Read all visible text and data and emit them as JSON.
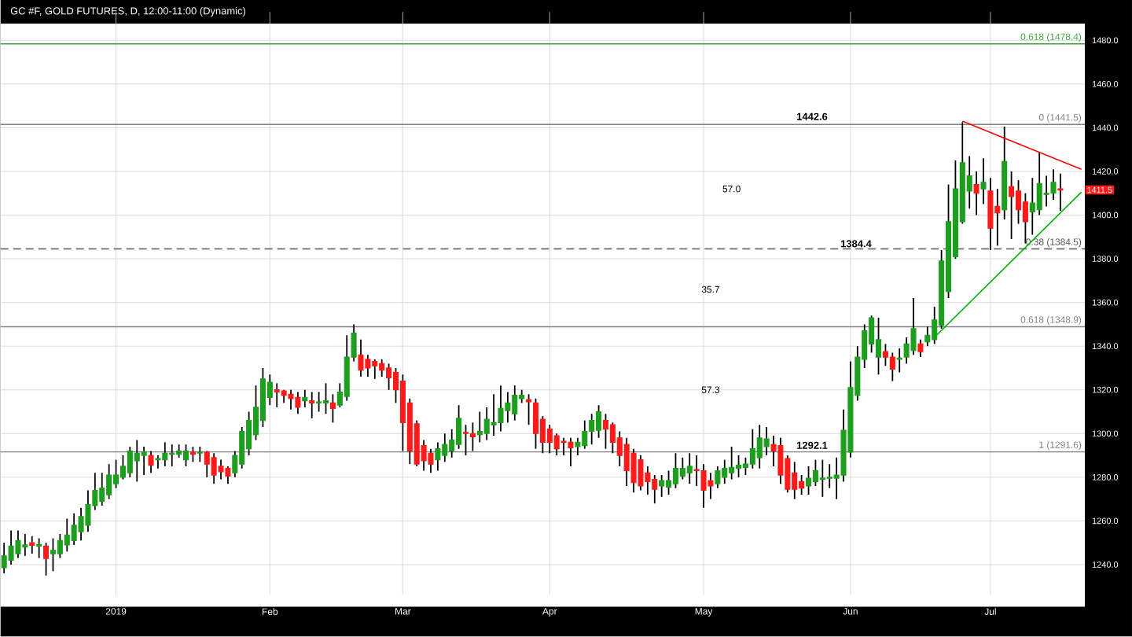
{
  "chart_data": {
    "type": "candlestick",
    "title": "GC #F, GOLD FUTURES, D, 12:00-11:00 (Dynamic)",
    "categories": [
      null,
      null,
      null,
      null,
      null,
      null,
      null,
      null,
      null,
      null,
      null,
      null,
      null,
      null,
      null,
      null,
      "2019",
      null,
      null,
      null,
      null,
      null,
      null,
      null,
      null,
      null,
      null,
      null,
      null,
      null,
      null,
      null,
      null,
      null,
      null,
      null,
      null,
      null,
      "Feb",
      null,
      null,
      null,
      null,
      null,
      null,
      null,
      null,
      null,
      null,
      null,
      null,
      null,
      null,
      null,
      null,
      null,
      null,
      "Mar",
      null,
      null,
      null,
      null,
      null,
      null,
      null,
      null,
      null,
      null,
      null,
      null,
      null,
      null,
      null,
      null,
      null,
      null,
      null,
      null,
      "Apr",
      null,
      null,
      null,
      null,
      null,
      null,
      null,
      null,
      null,
      null,
      null,
      null,
      null,
      null,
      null,
      null,
      null,
      null,
      null,
      null,
      null,
      "May",
      null,
      null,
      null,
      null,
      null,
      null,
      null,
      null,
      null,
      null,
      null,
      null,
      null,
      null,
      null,
      null,
      null,
      null,
      null,
      null,
      "Jun",
      null,
      null,
      null,
      null,
      null,
      null,
      null,
      null,
      null,
      null,
      null,
      null,
      null,
      null,
      null,
      null,
      null,
      null,
      null,
      "Jul",
      null,
      null,
      null,
      null,
      null,
      null,
      null,
      null,
      null,
      null,
      null,
      null,
      null
    ],
    "ohlc": [
      [
        1238.6,
        1250,
        1236,
        1244
      ],
      [
        1242,
        1255.6,
        1240,
        1248.5
      ],
      [
        1245,
        1255.6,
        1243,
        1251
      ],
      [
        1248,
        1254,
        1244,
        1249
      ],
      [
        1250,
        1253,
        1245,
        1248.8
      ],
      [
        1248.5,
        1252,
        1243,
        1249.2
      ],
      [
        1248.5,
        1250,
        1235,
        1242.8
      ],
      [
        1245,
        1252,
        1237,
        1246.5
      ],
      [
        1245,
        1254,
        1243,
        1251
      ],
      [
        1249,
        1261,
        1246,
        1253.5
      ],
      [
        1251,
        1263.5,
        1249,
        1258
      ],
      [
        1255,
        1266,
        1251,
        1262
      ],
      [
        1258,
        1274,
        1255,
        1267.5
      ],
      [
        1267,
        1282,
        1265,
        1274
      ],
      [
        1269,
        1282,
        1267,
        1275
      ],
      [
        1272,
        1286,
        1270,
        1281
      ],
      [
        1277,
        1288,
        1275,
        1281
      ],
      [
        1280,
        1290,
        1279,
        1285
      ],
      [
        1282,
        1294,
        1280,
        1292
      ],
      [
        1287.5,
        1297,
        1278,
        1291
      ],
      [
        1290,
        1294,
        1281,
        1291.5
      ],
      [
        1290,
        1292,
        1282,
        1285.5
      ],
      [
        1288,
        1290,
        1284,
        1288.5
      ],
      [
        1288,
        1296,
        1285,
        1291
      ],
      [
        1290.5,
        1295,
        1285,
        1291
      ],
      [
        1290.5,
        1295,
        1289,
        1292
      ],
      [
        1288,
        1295,
        1285,
        1292
      ],
      [
        1291.5,
        1294,
        1287,
        1290.5
      ],
      [
        1291,
        1294,
        1287,
        1291.5
      ],
      [
        1291.5,
        1292,
        1280,
        1286
      ],
      [
        1289,
        1291,
        1277,
        1281
      ],
      [
        1285,
        1288,
        1279,
        1282.5
      ],
      [
        1284,
        1285,
        1277,
        1280.5
      ],
      [
        1282,
        1292,
        1280,
        1290
      ],
      [
        1286,
        1303,
        1284,
        1301
      ],
      [
        1293,
        1310,
        1290,
        1306
      ],
      [
        1299.5,
        1322,
        1297,
        1312
      ],
      [
        1306,
        1330,
        1303,
        1325
      ],
      [
        1316.5,
        1327,
        1313,
        1323.5
      ],
      [
        1320,
        1323,
        1312,
        1319
      ],
      [
        1319.5,
        1320,
        1314,
        1317.5
      ],
      [
        1318,
        1320,
        1311,
        1316
      ],
      [
        1316.5,
        1319,
        1309,
        1312
      ],
      [
        1315,
        1320,
        1312,
        1316.5
      ],
      [
        1315,
        1319,
        1307,
        1314
      ],
      [
        1314,
        1319,
        1310,
        1314.5
      ],
      [
        1314,
        1323,
        1309,
        1315
      ],
      [
        1314,
        1318,
        1305,
        1311.5
      ],
      [
        1313,
        1323,
        1312,
        1319
      ],
      [
        1317,
        1345,
        1315,
        1335
      ],
      [
        1335,
        1350,
        1333,
        1346
      ],
      [
        1336,
        1343,
        1326,
        1329
      ],
      [
        1334,
        1336,
        1326,
        1330
      ],
      [
        1333,
        1334,
        1325,
        1331
      ],
      [
        1332,
        1334,
        1326,
        1329
      ],
      [
        1330,
        1332,
        1320,
        1325.5
      ],
      [
        1328,
        1330,
        1314,
        1320
      ],
      [
        1324,
        1327,
        1292,
        1305
      ],
      [
        1314,
        1316,
        1286,
        1292
      ],
      [
        1304.5,
        1306,
        1285,
        1286
      ],
      [
        1294.5,
        1297,
        1283,
        1287.5
      ],
      [
        1291,
        1293,
        1282,
        1286
      ],
      [
        1288,
        1296,
        1283,
        1293
      ],
      [
        1290,
        1300,
        1287,
        1295
      ],
      [
        1292,
        1302,
        1289,
        1297
      ],
      [
        1295,
        1313,
        1293,
        1307
      ],
      [
        1300.5,
        1304,
        1290,
        1300
      ],
      [
        1300,
        1305,
        1292,
        1298.5
      ],
      [
        1299.5,
        1310,
        1296,
        1301
      ],
      [
        1300,
        1312,
        1297,
        1306.5
      ],
      [
        1304,
        1318,
        1299,
        1305
      ],
      [
        1305,
        1322,
        1301,
        1311.5
      ],
      [
        1310.5,
        1319,
        1305,
        1314
      ],
      [
        1309,
        1322,
        1306,
        1317.5
      ],
      [
        1316,
        1320,
        1314,
        1317.5
      ],
      [
        1315.5,
        1318,
        1304,
        1314.5
      ],
      [
        1314,
        1316,
        1293,
        1300
      ],
      [
        1306.5,
        1308,
        1291,
        1296
      ],
      [
        1302,
        1304,
        1291,
        1296
      ],
      [
        1299,
        1300,
        1290,
        1293
      ],
      [
        1296.5,
        1298,
        1290,
        1296
      ],
      [
        1296,
        1298,
        1285,
        1293.5
      ],
      [
        1294,
        1298,
        1290,
        1296
      ],
      [
        1294.5,
        1306,
        1293,
        1301
      ],
      [
        1301,
        1309,
        1295,
        1306
      ],
      [
        1301.5,
        1313,
        1298,
        1310
      ],
      [
        1306,
        1309,
        1293,
        1302
      ],
      [
        1304,
        1305,
        1291,
        1296
      ],
      [
        1298,
        1301,
        1285,
        1290
      ],
      [
        1295,
        1298,
        1276,
        1283
      ],
      [
        1291,
        1293,
        1273,
        1277.5
      ],
      [
        1288,
        1290,
        1274,
        1276
      ],
      [
        1282,
        1285,
        1272,
        1278
      ],
      [
        1279,
        1281,
        1268,
        1274.5
      ],
      [
        1276,
        1281,
        1271,
        1278.5
      ],
      [
        1275.5,
        1283,
        1272,
        1278.5
      ],
      [
        1277,
        1291,
        1275,
        1284
      ],
      [
        1280.5,
        1289,
        1279,
        1284
      ],
      [
        1282,
        1291,
        1277,
        1285
      ],
      [
        1283.5,
        1290,
        1276,
        1283
      ],
      [
        1283,
        1286,
        1266,
        1274
      ],
      [
        1278.5,
        1282,
        1270,
        1276
      ],
      [
        1277,
        1285,
        1275,
        1283
      ],
      [
        1280,
        1288,
        1277,
        1284
      ],
      [
        1282,
        1294,
        1279,
        1284.5
      ],
      [
        1284,
        1290,
        1280,
        1285.5
      ],
      [
        1284.5,
        1289,
        1281,
        1286
      ],
      [
        1286,
        1302,
        1284,
        1293
      ],
      [
        1289,
        1304,
        1284,
        1298
      ],
      [
        1294,
        1303,
        1290,
        1297.5
      ],
      [
        1295,
        1299,
        1285,
        1292
      ],
      [
        1294.5,
        1298,
        1277,
        1281
      ],
      [
        1288.5,
        1290,
        1273,
        1274.5
      ],
      [
        1282,
        1287,
        1270,
        1274.5
      ],
      [
        1278,
        1281,
        1272,
        1275
      ],
      [
        1276,
        1285,
        1272,
        1279.5
      ],
      [
        1278,
        1288,
        1276,
        1283
      ],
      [
        1279,
        1288,
        1271,
        1279.6
      ],
      [
        1279.5,
        1286,
        1275,
        1280
      ],
      [
        1279.5,
        1289,
        1270,
        1281
      ],
      [
        1281,
        1311,
        1278,
        1301.5
      ],
      [
        1291.5,
        1333,
        1289,
        1321
      ],
      [
        1317.5,
        1340,
        1315,
        1335
      ],
      [
        1334,
        1350,
        1330,
        1347
      ],
      [
        1341,
        1354,
        1337,
        1353
      ],
      [
        1335,
        1353,
        1327,
        1343
      ],
      [
        1337.5,
        1341,
        1331,
        1335
      ],
      [
        1335,
        1337,
        1324,
        1329.5
      ],
      [
        1334,
        1339,
        1328,
        1334.5
      ],
      [
        1335,
        1344,
        1332,
        1341
      ],
      [
        1338,
        1362,
        1336,
        1348
      ],
      [
        1341,
        1343,
        1335,
        1337.5
      ],
      [
        1342,
        1349,
        1340,
        1345
      ],
      [
        1343,
        1358,
        1341,
        1352
      ],
      [
        1349.5,
        1384,
        1348,
        1379
      ],
      [
        1365,
        1414,
        1362,
        1397
      ],
      [
        1381,
        1425,
        1380,
        1412
      ],
      [
        1397,
        1442.6,
        1396,
        1424
      ],
      [
        1411,
        1427,
        1403,
        1418
      ],
      [
        1414,
        1420,
        1400,
        1410
      ],
      [
        1412,
        1426,
        1405,
        1415
      ],
      [
        1411,
        1417,
        1384,
        1394
      ],
      [
        1404,
        1412,
        1386,
        1401
      ],
      [
        1402.5,
        1440.5,
        1398,
        1424.5
      ],
      [
        1413,
        1420,
        1389,
        1408.5
      ],
      [
        1411,
        1416,
        1396,
        1402.5
      ],
      [
        1406,
        1410,
        1387,
        1397
      ],
      [
        1401.5,
        1417,
        1391,
        1405.5
      ],
      [
        1402.5,
        1429,
        1400,
        1414.5
      ],
      [
        1409.5,
        1418,
        1404,
        1410
      ],
      [
        1410,
        1421,
        1407,
        1415
      ],
      [
        1412,
        1419,
        1402,
        1411.5
      ],
      null,
      null,
      null
    ],
    "series": [
      {
        "type": "line",
        "color": "#ff0000",
        "values": [
          null,
          null,
          null,
          null,
          null,
          null,
          null,
          null,
          null,
          null,
          null,
          null,
          null,
          null,
          null,
          null,
          null,
          null,
          null,
          null,
          null,
          null,
          null,
          null,
          null,
          null,
          null,
          null,
          null,
          null,
          null,
          null,
          null,
          null,
          null,
          null,
          null,
          null,
          null,
          null,
          null,
          null,
          null,
          null,
          null,
          null,
          null,
          null,
          null,
          null,
          null,
          null,
          null,
          null,
          null,
          null,
          null,
          null,
          null,
          null,
          null,
          null,
          null,
          null,
          null,
          null,
          null,
          null,
          null,
          null,
          null,
          null,
          null,
          null,
          null,
          null,
          null,
          null,
          null,
          null,
          null,
          null,
          null,
          null,
          null,
          null,
          null,
          null,
          null,
          null,
          null,
          null,
          null,
          null,
          null,
          null,
          null,
          null,
          null,
          null,
          null,
          null,
          null,
          null,
          null,
          null,
          null,
          null,
          null,
          null,
          null,
          null,
          null,
          null,
          null,
          null,
          null,
          null,
          null,
          null,
          null,
          null,
          null,
          null,
          null,
          null,
          null,
          null,
          null,
          null,
          null,
          null,
          null,
          null,
          null,
          null,
          null,
          1443,
          null,
          null,
          null,
          null,
          null,
          null,
          null,
          null,
          null,
          null,
          null,
          null,
          null,
          null,
          null,
          null,
          1421
        ]
      },
      {
        "type": "line",
        "color": "#00b000",
        "values": [
          null,
          null,
          null,
          null,
          null,
          null,
          null,
          null,
          null,
          null,
          null,
          null,
          null,
          null,
          null,
          null,
          null,
          null,
          null,
          null,
          null,
          null,
          null,
          null,
          null,
          null,
          null,
          null,
          null,
          null,
          null,
          null,
          null,
          null,
          null,
          null,
          null,
          null,
          null,
          null,
          null,
          null,
          null,
          null,
          null,
          null,
          null,
          null,
          null,
          null,
          null,
          null,
          null,
          null,
          null,
          null,
          null,
          null,
          null,
          null,
          null,
          null,
          null,
          null,
          null,
          null,
          null,
          null,
          null,
          null,
          null,
          null,
          null,
          null,
          null,
          null,
          null,
          null,
          null,
          null,
          null,
          null,
          null,
          null,
          null,
          null,
          null,
          null,
          null,
          null,
          null,
          null,
          null,
          null,
          null,
          null,
          null,
          null,
          null,
          null,
          null,
          null,
          null,
          null,
          null,
          null,
          null,
          null,
          null,
          null,
          null,
          null,
          null,
          null,
          null,
          null,
          null,
          null,
          null,
          null,
          null,
          null,
          null,
          null,
          null,
          null,
          null,
          null,
          null,
          null,
          null,
          null,
          null,
          1344,
          null,
          null,
          null,
          null,
          null,
          null,
          null,
          null,
          null,
          null,
          null,
          null,
          null,
          null,
          null,
          null,
          null,
          null,
          null,
          null,
          1410.5
        ]
      }
    ],
    "ylim": [
      1226,
      1493
    ],
    "yticks": [
      {
        "value": 1240,
        "label": "1240.0"
      },
      {
        "value": 1260,
        "label": "1260.0"
      },
      {
        "value": 1280,
        "label": "1280.0"
      },
      {
        "value": 1300,
        "label": "1300.0"
      },
      {
        "value": 1320,
        "label": "1320.0"
      },
      {
        "value": 1340,
        "label": "1340.0"
      },
      {
        "value": 1360,
        "label": "1360.0"
      },
      {
        "value": 1380,
        "label": "1380.0"
      },
      {
        "value": 1400,
        "label": "1400.0"
      },
      {
        "value": 1420,
        "label": "1420.0"
      },
      {
        "value": 1440,
        "label": "1440.0"
      },
      {
        "value": 1460,
        "label": "1460.0"
      },
      {
        "value": 1480,
        "label": "1480.0"
      }
    ],
    "ref_lines": [
      {
        "axis": "y",
        "value": 1478.4,
        "label": "0.618 (1478.4)",
        "color": "#3aa83a"
      },
      {
        "axis": "y",
        "value": 1441.5,
        "label": "0 (1441.5)",
        "color": "#808080"
      },
      {
        "axis": "y",
        "value": 1384.5,
        "label": "0.38 (1384.5)",
        "color": "#555555",
        "line_style": "dashed"
      },
      {
        "axis": "y",
        "value": 1348.9,
        "label": "0.618 (1348.9)",
        "color": "#808080"
      },
      {
        "axis": "y",
        "value": 1291.6,
        "label": "1 (1291.6)",
        "color": "#808080"
      }
    ],
    "annotations": [
      {
        "text": "1442.6",
        "y": 1442.6
      },
      {
        "text": "1292.1",
        "y": 1292.1
      },
      {
        "text": "1384.4",
        "y": 1384.4
      },
      {
        "text": "1411.5",
        "y": 1411.5
      },
      "57.0",
      "35.7",
      "57.3"
    ],
    "grid": true
  }
}
